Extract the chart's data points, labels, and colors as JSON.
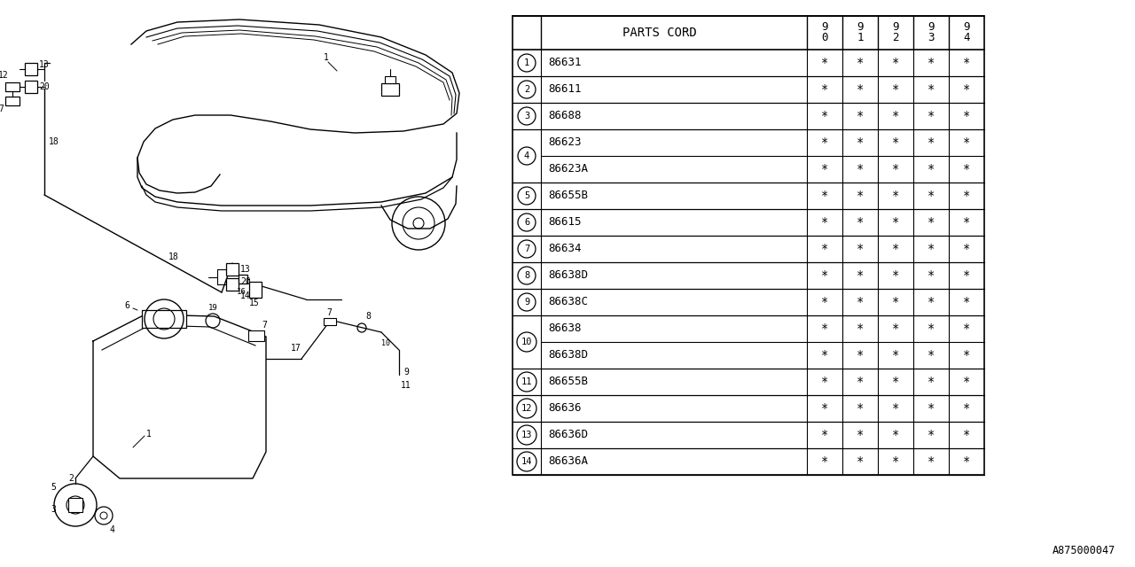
{
  "doc_id": "A875000047",
  "rows": [
    {
      "num": "1",
      "single": true,
      "parts": [
        {
          "code": "86631",
          "years": [
            "*",
            "*",
            "*",
            "*",
            "*"
          ]
        }
      ]
    },
    {
      "num": "2",
      "single": true,
      "parts": [
        {
          "code": "86611",
          "years": [
            "*",
            "*",
            "*",
            "*",
            "*"
          ]
        }
      ]
    },
    {
      "num": "3",
      "single": true,
      "parts": [
        {
          "code": "86688",
          "years": [
            "*",
            "*",
            "*",
            "*",
            "*"
          ]
        }
      ]
    },
    {
      "num": "4",
      "single": false,
      "parts": [
        {
          "code": "86623",
          "years": [
            "*",
            "*",
            "*",
            "*",
            "*"
          ]
        },
        {
          "code": "86623A",
          "years": [
            "*",
            "*",
            "*",
            "*",
            "*"
          ]
        }
      ]
    },
    {
      "num": "5",
      "single": true,
      "parts": [
        {
          "code": "86655B",
          "years": [
            "*",
            "*",
            "*",
            "*",
            "*"
          ]
        }
      ]
    },
    {
      "num": "6",
      "single": true,
      "parts": [
        {
          "code": "86615",
          "years": [
            "*",
            "*",
            "*",
            "*",
            "*"
          ]
        }
      ]
    },
    {
      "num": "7",
      "single": true,
      "parts": [
        {
          "code": "86634",
          "years": [
            "*",
            "*",
            "*",
            "*",
            "*"
          ]
        }
      ]
    },
    {
      "num": "8",
      "single": true,
      "parts": [
        {
          "code": "86638D",
          "years": [
            "*",
            "*",
            "*",
            "*",
            "*"
          ]
        }
      ]
    },
    {
      "num": "9",
      "single": true,
      "parts": [
        {
          "code": "86638C",
          "years": [
            "*",
            "*",
            "*",
            "*",
            "*"
          ]
        }
      ]
    },
    {
      "num": "10",
      "single": false,
      "parts": [
        {
          "code": "86638",
          "years": [
            "*",
            "*",
            "*",
            "*",
            "*"
          ]
        },
        {
          "code": "86638D",
          "years": [
            "*",
            "*",
            "*",
            "*",
            "*"
          ]
        }
      ]
    },
    {
      "num": "11",
      "single": true,
      "parts": [
        {
          "code": "86655B",
          "years": [
            "*",
            "*",
            "*",
            "*",
            "*"
          ]
        }
      ]
    },
    {
      "num": "12",
      "single": true,
      "parts": [
        {
          "code": "86636",
          "years": [
            "*",
            "*",
            "*",
            "*",
            "*"
          ]
        }
      ]
    },
    {
      "num": "13",
      "single": true,
      "parts": [
        {
          "code": "86636D",
          "years": [
            "*",
            "*",
            "*",
            "*",
            "*"
          ]
        }
      ]
    },
    {
      "num": "14",
      "single": true,
      "parts": [
        {
          "code": "86636A",
          "years": [
            "*",
            "*",
            "*",
            "*",
            "*"
          ]
        }
      ]
    }
  ],
  "bg_color": "#ffffff"
}
